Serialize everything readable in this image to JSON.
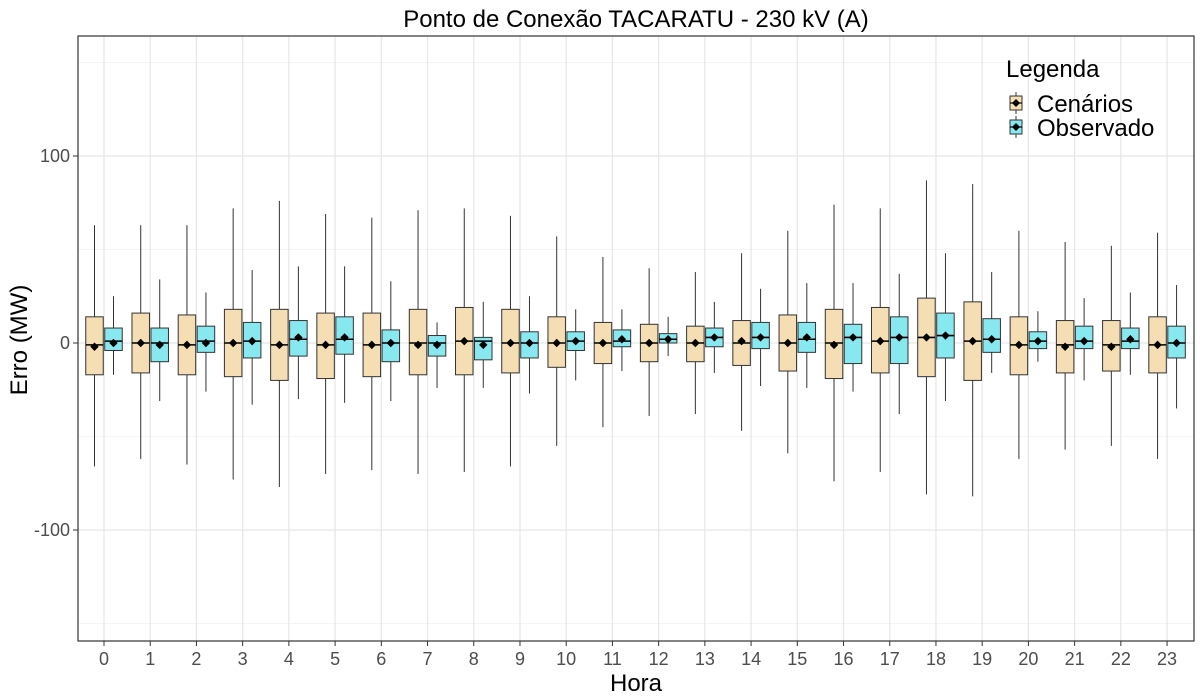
{
  "chart_data": {
    "type": "boxplot",
    "title": "Ponto de Conexão TACARATU - 230 kV (A)",
    "xlabel": "Hora",
    "ylabel": "Erro (MW)",
    "ylim": [
      -160,
      165
    ],
    "yticks": [
      -100,
      0,
      100
    ],
    "grid": true,
    "legend": {
      "title": "Legenda",
      "position": "top-right"
    },
    "categories": [
      "0",
      "1",
      "2",
      "3",
      "4",
      "5",
      "6",
      "7",
      "8",
      "9",
      "10",
      "11",
      "12",
      "13",
      "14",
      "15",
      "16",
      "17",
      "18",
      "19",
      "20",
      "21",
      "22",
      "23"
    ],
    "series": [
      {
        "name": "Cenários",
        "color": "#F5DEB3",
        "stats": [
          {
            "lower": -66,
            "q1": -17,
            "median": -1,
            "mean": -2,
            "q3": 14,
            "upper": 63
          },
          {
            "lower": -62,
            "q1": -16,
            "median": 0,
            "mean": 0,
            "q3": 16,
            "upper": 63
          },
          {
            "lower": -65,
            "q1": -17,
            "median": -1,
            "mean": -1,
            "q3": 15,
            "upper": 63
          },
          {
            "lower": -73,
            "q1": -18,
            "median": 0,
            "mean": 0,
            "q3": 18,
            "upper": 72
          },
          {
            "lower": -77,
            "q1": -20,
            "median": -1,
            "mean": -1,
            "q3": 18,
            "upper": 76
          },
          {
            "lower": -70,
            "q1": -19,
            "median": -1,
            "mean": -1,
            "q3": 16,
            "upper": 69
          },
          {
            "lower": -68,
            "q1": -18,
            "median": -1,
            "mean": -1,
            "q3": 16,
            "upper": 67
          },
          {
            "lower": -70,
            "q1": -17,
            "median": 0,
            "mean": -1,
            "q3": 18,
            "upper": 71
          },
          {
            "lower": -69,
            "q1": -17,
            "median": 1,
            "mean": 1,
            "q3": 19,
            "upper": 72
          },
          {
            "lower": -66,
            "q1": -16,
            "median": 0,
            "mean": 0,
            "q3": 18,
            "upper": 68
          },
          {
            "lower": -55,
            "q1": -13,
            "median": 0,
            "mean": 0,
            "q3": 14,
            "upper": 57
          },
          {
            "lower": -45,
            "q1": -11,
            "median": 0,
            "mean": 0,
            "q3": 11,
            "upper": 46
          },
          {
            "lower": -39,
            "q1": -10,
            "median": 0,
            "mean": 0,
            "q3": 10,
            "upper": 40
          },
          {
            "lower": -38,
            "q1": -10,
            "median": 0,
            "mean": 0,
            "q3": 9,
            "upper": 38
          },
          {
            "lower": -47,
            "q1": -12,
            "median": 0,
            "mean": 1,
            "q3": 12,
            "upper": 48
          },
          {
            "lower": -59,
            "q1": -15,
            "median": 0,
            "mean": 0,
            "q3": 15,
            "upper": 60
          },
          {
            "lower": -74,
            "q1": -19,
            "median": 0,
            "mean": -1,
            "q3": 18,
            "upper": 74
          },
          {
            "lower": -69,
            "q1": -16,
            "median": 1,
            "mean": 1,
            "q3": 19,
            "upper": 72
          },
          {
            "lower": -81,
            "q1": -18,
            "median": 3,
            "mean": 3,
            "q3": 24,
            "upper": 87
          },
          {
            "lower": -82,
            "q1": -20,
            "median": 1,
            "mean": 1,
            "q3": 22,
            "upper": 85
          },
          {
            "lower": -62,
            "q1": -17,
            "median": -1,
            "mean": -1,
            "q3": 14,
            "upper": 60
          },
          {
            "lower": -57,
            "q1": -16,
            "median": -1,
            "mean": -2,
            "q3": 12,
            "upper": 54
          },
          {
            "lower": -55,
            "q1": -15,
            "median": -1,
            "mean": -2,
            "q3": 12,
            "upper": 52
          },
          {
            "lower": -62,
            "q1": -16,
            "median": -1,
            "mean": -1,
            "q3": 14,
            "upper": 59
          }
        ]
      },
      {
        "name": "Observado",
        "color": "#87E8F0",
        "stats": [
          {
            "lower": -17,
            "q1": -4,
            "median": 1,
            "mean": 0,
            "q3": 8,
            "upper": 25
          },
          {
            "lower": -31,
            "q1": -10,
            "median": 0,
            "mean": -1,
            "q3": 8,
            "upper": 34
          },
          {
            "lower": -26,
            "q1": -5,
            "median": 1,
            "mean": 0,
            "q3": 9,
            "upper": 27
          },
          {
            "lower": -33,
            "q1": -8,
            "median": 1,
            "mean": 1,
            "q3": 11,
            "upper": 39
          },
          {
            "lower": -30,
            "q1": -7,
            "median": 2,
            "mean": 3,
            "q3": 12,
            "upper": 41
          },
          {
            "lower": -32,
            "q1": -6,
            "median": 2,
            "mean": 3,
            "q3": 14,
            "upper": 41
          },
          {
            "lower": -31,
            "q1": -10,
            "median": 0,
            "mean": 0,
            "q3": 7,
            "upper": 33
          },
          {
            "lower": -24,
            "q1": -7,
            "median": 0,
            "mean": -1,
            "q3": 4,
            "upper": 11
          },
          {
            "lower": -24,
            "q1": -9,
            "median": 1,
            "mean": -1,
            "q3": 3,
            "upper": 22
          },
          {
            "lower": -27,
            "q1": -8,
            "median": 0,
            "mean": 0,
            "q3": 6,
            "upper": 25
          },
          {
            "lower": -20,
            "q1": -4,
            "median": 1,
            "mean": 1,
            "q3": 6,
            "upper": 18
          },
          {
            "lower": -15,
            "q1": -2,
            "median": 1,
            "mean": 2,
            "q3": 7,
            "upper": 18
          },
          {
            "lower": -7,
            "q1": 0,
            "median": 2,
            "mean": 2,
            "q3": 5,
            "upper": 14
          },
          {
            "lower": -16,
            "q1": -2,
            "median": 3,
            "mean": 3,
            "q3": 8,
            "upper": 22
          },
          {
            "lower": -23,
            "q1": -3,
            "median": 3,
            "mean": 3,
            "q3": 11,
            "upper": 29
          },
          {
            "lower": -24,
            "q1": -5,
            "median": 2,
            "mean": 3,
            "q3": 11,
            "upper": 32
          },
          {
            "lower": -26,
            "q1": -11,
            "median": 3,
            "mean": 3,
            "q3": 10,
            "upper": 32
          },
          {
            "lower": -38,
            "q1": -11,
            "median": 3,
            "mean": 3,
            "q3": 14,
            "upper": 37
          },
          {
            "lower": -31,
            "q1": -8,
            "median": 4,
            "mean": 4,
            "q3": 16,
            "upper": 48
          },
          {
            "lower": -16,
            "q1": -5,
            "median": 2,
            "mean": 2,
            "q3": 13,
            "upper": 38
          },
          {
            "lower": -10,
            "q1": -3,
            "median": 1,
            "mean": 1,
            "q3": 6,
            "upper": 17
          },
          {
            "lower": -20,
            "q1": -3,
            "median": 1,
            "mean": 1,
            "q3": 9,
            "upper": 24
          },
          {
            "lower": -17,
            "q1": -3,
            "median": 1,
            "mean": 2,
            "q3": 8,
            "upper": 27
          },
          {
            "lower": -35,
            "q1": -8,
            "median": 0,
            "mean": 0,
            "q3": 9,
            "upper": 31
          }
        ]
      }
    ]
  }
}
